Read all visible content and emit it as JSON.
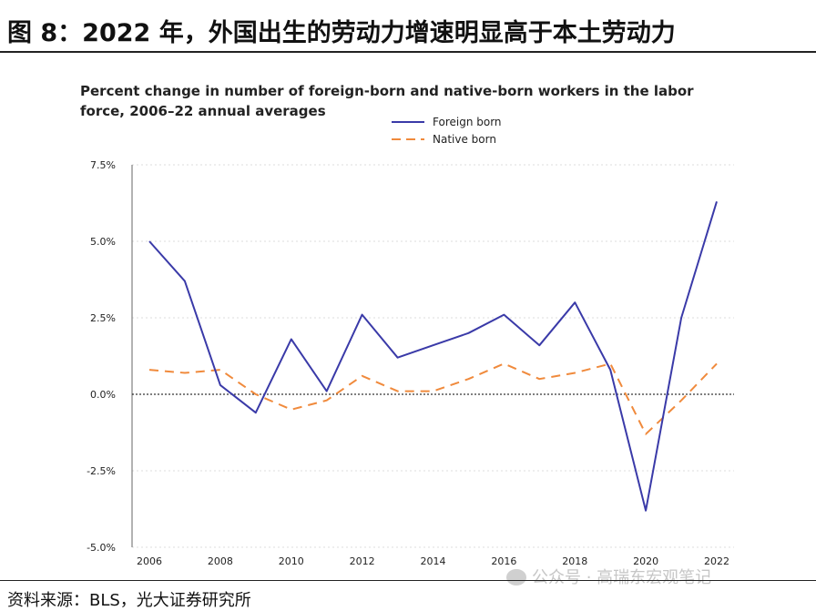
{
  "figure_title": "图 8：2022 年，外国出生的劳动力增速明显高于本土劳动力",
  "source": "资料来源：BLS，光大证券研究所",
  "watermark": "公众号 · 高瑞东宏观笔记",
  "chart_data": {
    "type": "line",
    "title_lines": [
      "Percent change in number of foreign-born and native-born workers in the labor",
      "force, 2006–22 annual averages"
    ],
    "x": [
      2006,
      2007,
      2008,
      2009,
      2010,
      2011,
      2012,
      2013,
      2014,
      2015,
      2016,
      2017,
      2018,
      2019,
      2020,
      2021,
      2022
    ],
    "x_ticks": [
      2006,
      2008,
      2010,
      2012,
      2014,
      2016,
      2018,
      2020,
      2022
    ],
    "y_ticks": [
      7.5,
      5.0,
      2.5,
      0.0,
      -2.5,
      -5.0
    ],
    "y_tick_labels": [
      "7.5%",
      "5.0%",
      "2.5%",
      "0.0%",
      "-2.5%",
      "-5.0%"
    ],
    "ylim": [
      -5.0,
      7.5
    ],
    "xlim": [
      2006,
      2022
    ],
    "grid": true,
    "legend_position": "top-center",
    "series": [
      {
        "name": "Foreign born",
        "color": "#3a3aa8",
        "style": "solid",
        "values": [
          5.0,
          3.7,
          0.3,
          -0.6,
          1.8,
          0.1,
          2.6,
          1.2,
          1.6,
          2.0,
          2.6,
          1.6,
          3.0,
          0.8,
          -3.8,
          2.5,
          6.3
        ]
      },
      {
        "name": "Native born",
        "color": "#f08a3c",
        "style": "dashed",
        "values": [
          0.8,
          0.7,
          0.8,
          0.0,
          -0.5,
          -0.2,
          0.6,
          0.1,
          0.1,
          0.5,
          1.0,
          0.5,
          0.7,
          1.0,
          -1.3,
          -0.2,
          1.0
        ]
      }
    ]
  }
}
